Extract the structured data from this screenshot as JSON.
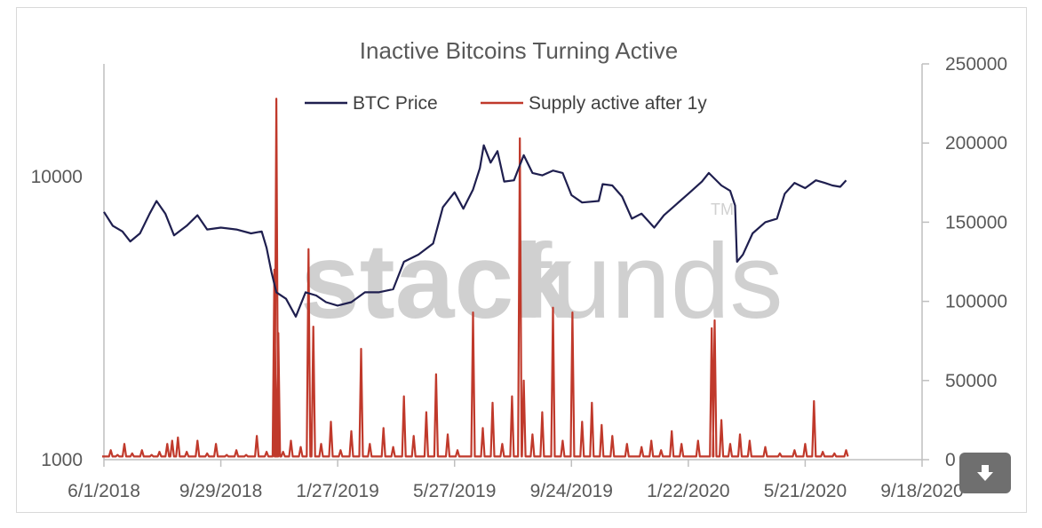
{
  "chart_data": {
    "type": "line",
    "title": "Inactive Bitcoins Turning Active",
    "xlabel": "",
    "ylabel_left": "",
    "ylabel_right": "",
    "x_ticks": [
      "6/1/2018",
      "9/29/2018",
      "1/27/2019",
      "5/27/2019",
      "9/24/2019",
      "1/22/2020",
      "5/21/2020",
      "9/18/2020"
    ],
    "x_range": [
      "2018-06-01",
      "2020-09-18"
    ],
    "y_left": {
      "scale": "log",
      "range": [
        1000,
        25000
      ],
      "ticks": [
        "1000",
        "10000"
      ]
    },
    "y_right": {
      "scale": "linear",
      "range": [
        0,
        250000
      ],
      "ticks": [
        "0",
        "50000",
        "100000",
        "150000",
        "200000",
        "250000"
      ]
    },
    "legend": {
      "placement": "top",
      "entries": [
        "BTC Price",
        "Supply active after 1y"
      ]
    },
    "gridlines": false,
    "series": [
      {
        "name": "BTC Price",
        "axis": "left",
        "color": "#1f1f4f",
        "points": [
          [
            "2018-06-01",
            7500
          ],
          [
            "2018-06-10",
            6700
          ],
          [
            "2018-06-20",
            6400
          ],
          [
            "2018-06-28",
            5900
          ],
          [
            "2018-07-08",
            6300
          ],
          [
            "2018-07-18",
            7400
          ],
          [
            "2018-07-25",
            8200
          ],
          [
            "2018-08-03",
            7400
          ],
          [
            "2018-08-12",
            6200
          ],
          [
            "2018-08-25",
            6700
          ],
          [
            "2018-09-05",
            7300
          ],
          [
            "2018-09-15",
            6500
          ],
          [
            "2018-09-29",
            6600
          ],
          [
            "2018-10-15",
            6500
          ],
          [
            "2018-10-30",
            6300
          ],
          [
            "2018-11-10",
            6400
          ],
          [
            "2018-11-15",
            5600
          ],
          [
            "2018-11-20",
            4600
          ],
          [
            "2018-11-25",
            3900
          ],
          [
            "2018-12-05",
            3700
          ],
          [
            "2018-12-15",
            3200
          ],
          [
            "2018-12-25",
            3900
          ],
          [
            "2019-01-05",
            3800
          ],
          [
            "2019-01-15",
            3600
          ],
          [
            "2019-01-27",
            3500
          ],
          [
            "2019-02-10",
            3600
          ],
          [
            "2019-02-24",
            3900
          ],
          [
            "2019-03-10",
            3900
          ],
          [
            "2019-03-25",
            4000
          ],
          [
            "2019-04-05",
            5000
          ],
          [
            "2019-04-20",
            5300
          ],
          [
            "2019-05-05",
            5800
          ],
          [
            "2019-05-15",
            7800
          ],
          [
            "2019-05-27",
            8800
          ],
          [
            "2019-06-05",
            7700
          ],
          [
            "2019-06-15",
            9000
          ],
          [
            "2019-06-22",
            10700
          ],
          [
            "2019-06-26",
            12900
          ],
          [
            "2019-07-03",
            11200
          ],
          [
            "2019-07-10",
            12300
          ],
          [
            "2019-07-17",
            9600
          ],
          [
            "2019-07-27",
            9700
          ],
          [
            "2019-08-06",
            11900
          ],
          [
            "2019-08-15",
            10300
          ],
          [
            "2019-08-25",
            10100
          ],
          [
            "2019-09-05",
            10500
          ],
          [
            "2019-09-15",
            10300
          ],
          [
            "2019-09-24",
            8600
          ],
          [
            "2019-10-05",
            8100
          ],
          [
            "2019-10-22",
            8200
          ],
          [
            "2019-10-26",
            9400
          ],
          [
            "2019-11-05",
            9300
          ],
          [
            "2019-11-15",
            8500
          ],
          [
            "2019-11-25",
            7100
          ],
          [
            "2019-12-05",
            7400
          ],
          [
            "2019-12-18",
            6600
          ],
          [
            "2019-12-28",
            7300
          ],
          [
            "2020-01-10",
            8000
          ],
          [
            "2020-01-22",
            8700
          ],
          [
            "2020-02-05",
            9600
          ],
          [
            "2020-02-12",
            10300
          ],
          [
            "2020-02-25",
            9300
          ],
          [
            "2020-03-05",
            8900
          ],
          [
            "2020-03-10",
            7900
          ],
          [
            "2020-03-12",
            5000
          ],
          [
            "2020-03-18",
            5300
          ],
          [
            "2020-03-28",
            6300
          ],
          [
            "2020-04-10",
            6900
          ],
          [
            "2020-04-22",
            7100
          ],
          [
            "2020-04-30",
            8700
          ],
          [
            "2020-05-10",
            9500
          ],
          [
            "2020-05-21",
            9100
          ],
          [
            "2020-06-01",
            9700
          ],
          [
            "2020-06-10",
            9500
          ],
          [
            "2020-06-18",
            9300
          ],
          [
            "2020-06-26",
            9200
          ],
          [
            "2020-07-02",
            9700
          ]
        ]
      },
      {
        "name": "Supply active after 1y",
        "axis": "right",
        "color": "#c0392b",
        "points": [
          [
            "2018-06-01",
            2000
          ],
          [
            "2018-06-08",
            6000
          ],
          [
            "2018-06-15",
            3000
          ],
          [
            "2018-06-22",
            10000
          ],
          [
            "2018-06-30",
            4000
          ],
          [
            "2018-07-10",
            6000
          ],
          [
            "2018-07-20",
            3000
          ],
          [
            "2018-07-28",
            5000
          ],
          [
            "2018-08-05",
            10000
          ],
          [
            "2018-08-10",
            12000
          ],
          [
            "2018-08-16",
            14000
          ],
          [
            "2018-08-25",
            5000
          ],
          [
            "2018-09-05",
            12000
          ],
          [
            "2018-09-15",
            4000
          ],
          [
            "2018-09-24",
            10000
          ],
          [
            "2018-10-05",
            3000
          ],
          [
            "2018-10-15",
            6000
          ],
          [
            "2018-10-25",
            3000
          ],
          [
            "2018-11-05",
            15000
          ],
          [
            "2018-11-15",
            5000
          ],
          [
            "2018-11-23",
            120000
          ],
          [
            "2018-11-25",
            228000
          ],
          [
            "2018-11-27",
            80000
          ],
          [
            "2018-12-02",
            5000
          ],
          [
            "2018-12-10",
            12000
          ],
          [
            "2018-12-20",
            8000
          ],
          [
            "2018-12-28",
            133000
          ],
          [
            "2019-01-02",
            84000
          ],
          [
            "2019-01-10",
            10000
          ],
          [
            "2019-01-20",
            24000
          ],
          [
            "2019-01-30",
            6000
          ],
          [
            "2019-02-10",
            18000
          ],
          [
            "2019-02-20",
            70000
          ],
          [
            "2019-03-01",
            10000
          ],
          [
            "2019-03-15",
            20000
          ],
          [
            "2019-03-25",
            8000
          ],
          [
            "2019-04-05",
            40000
          ],
          [
            "2019-04-15",
            15000
          ],
          [
            "2019-04-28",
            30000
          ],
          [
            "2019-05-08",
            54000
          ],
          [
            "2019-05-20",
            16000
          ],
          [
            "2019-05-30",
            6000
          ],
          [
            "2019-06-15",
            93000
          ],
          [
            "2019-06-25",
            20000
          ],
          [
            "2019-07-05",
            36000
          ],
          [
            "2019-07-15",
            10000
          ],
          [
            "2019-07-25",
            40000
          ],
          [
            "2019-08-02",
            203000
          ],
          [
            "2019-08-06",
            50000
          ],
          [
            "2019-08-15",
            16000
          ],
          [
            "2019-08-25",
            30000
          ],
          [
            "2019-09-05",
            96000
          ],
          [
            "2019-09-15",
            12000
          ],
          [
            "2019-09-25",
            93000
          ],
          [
            "2019-10-05",
            24000
          ],
          [
            "2019-10-15",
            36000
          ],
          [
            "2019-10-25",
            22000
          ],
          [
            "2019-11-05",
            15000
          ],
          [
            "2019-11-20",
            10000
          ],
          [
            "2019-12-05",
            8000
          ],
          [
            "2019-12-15",
            12000
          ],
          [
            "2019-12-25",
            6000
          ],
          [
            "2020-01-05",
            18000
          ],
          [
            "2020-01-15",
            10000
          ],
          [
            "2020-02-01",
            12000
          ],
          [
            "2020-02-15",
            83000
          ],
          [
            "2020-02-18",
            88000
          ],
          [
            "2020-02-25",
            25000
          ],
          [
            "2020-03-05",
            10000
          ],
          [
            "2020-03-15",
            16000
          ],
          [
            "2020-03-25",
            12000
          ],
          [
            "2020-04-10",
            8000
          ],
          [
            "2020-04-25",
            4000
          ],
          [
            "2020-05-10",
            6000
          ],
          [
            "2020-05-21",
            10000
          ],
          [
            "2020-05-30",
            37000
          ],
          [
            "2020-06-08",
            5000
          ],
          [
            "2020-06-20",
            4000
          ],
          [
            "2020-07-02",
            6000
          ]
        ]
      }
    ]
  },
  "watermark": {
    "text_bold": "stack",
    "text_light": "funds",
    "tm": "TM"
  },
  "download_button": {
    "icon": "download-arrow-icon",
    "color": "#6f6f6f"
  }
}
